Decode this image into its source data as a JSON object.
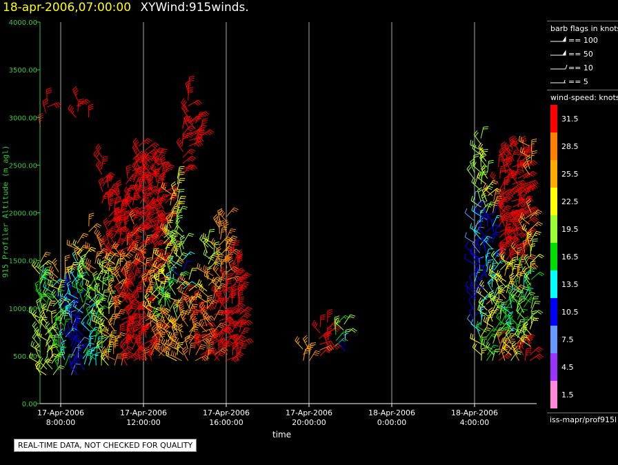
{
  "header": {
    "date": "18-apr-2006,07:00:00",
    "name": "XYWind:915winds."
  },
  "notice": "REAL-TIME DATA, NOT CHECKED FOR QUALITY",
  "legend": {
    "flags_title": "barb flags in knots",
    "flags": [
      {
        "label": "== 100",
        "knots": 100
      },
      {
        "label": "== 50",
        "knots": 50
      },
      {
        "label": "== 10",
        "knots": 10
      },
      {
        "label": "== 5",
        "knots": 5
      }
    ],
    "speed_title": "wind-speed: knots",
    "footer_id": "iss-mapr/prof915l"
  },
  "colors": {
    "axis": "#33cc33",
    "grid": "#aaaaaa",
    "text": "#ffffff",
    "title_date": "#ffff00"
  },
  "chart_data": {
    "type": "wind-barb time-height plot",
    "xlabel": "time",
    "ylabel": "915 Profiler Altitude (m agl)",
    "x_range": [
      "2006-04-17T07:00:00",
      "2006-04-18T07:00:00"
    ],
    "x_ticks": [
      {
        "date": "17-Apr-2006",
        "time": "8:00:00",
        "hour": 1
      },
      {
        "date": "17-Apr-2006",
        "time": "12:00:00",
        "hour": 5
      },
      {
        "date": "17-Apr-2006",
        "time": "16:00:00",
        "hour": 9
      },
      {
        "date": "17-Apr-2006",
        "time": "20:00:00",
        "hour": 13
      },
      {
        "date": "18-Apr-2006",
        "time": "0:00:00",
        "hour": 17
      },
      {
        "date": "18-Apr-2006",
        "time": "4:00:00",
        "hour": 21
      }
    ],
    "ylim": [
      0,
      4000
    ],
    "y_ticks": [
      "0.00",
      "500.00",
      "1000.00",
      "1500.00",
      "2000.00",
      "2500.00",
      "3000.00",
      "3500.00",
      "4000.00"
    ],
    "y_tick_values": [
      0,
      500,
      1000,
      1500,
      2000,
      2500,
      3000,
      3500,
      4000
    ],
    "colorbar": [
      {
        "label": "31.5",
        "color": "#ff0000"
      },
      {
        "label": "28.5",
        "color": "#ff8000"
      },
      {
        "label": "25.5",
        "color": "#ffaa00"
      },
      {
        "label": "22.5",
        "color": "#ffff00"
      },
      {
        "label": "19.5",
        "color": "#99ff33"
      },
      {
        "label": "16.5",
        "color": "#00dd00"
      },
      {
        "label": "13.5",
        "color": "#00ffff"
      },
      {
        "label": "10.5",
        "color": "#0000ff"
      },
      {
        "label": "7.5",
        "color": "#6699ff"
      },
      {
        "label": "4.5",
        "color": "#9933ff"
      },
      {
        "label": "1.5",
        "color": "#ff88dd"
      }
    ],
    "profiles": [
      {
        "t": 0.0,
        "bands": [
          [
            300,
            900,
            21
          ],
          [
            900,
            1300,
            18
          ],
          [
            1300,
            1500,
            23
          ],
          [
            2900,
            2900,
            33
          ]
        ]
      },
      {
        "t": 0.3,
        "bands": [
          [
            300,
            1000,
            22
          ],
          [
            1000,
            1400,
            17
          ],
          [
            3050,
            3200,
            33
          ]
        ]
      },
      {
        "t": 0.6,
        "bands": [
          [
            300,
            1100,
            20
          ],
          [
            1100,
            1350,
            14
          ]
        ]
      },
      {
        "t": 0.9,
        "bands": [
          [
            350,
            1000,
            17
          ],
          [
            1000,
            1200,
            20
          ],
          [
            1200,
            1400,
            25
          ]
        ]
      },
      {
        "t": 1.2,
        "bands": [
          [
            400,
            1000,
            15
          ],
          [
            1000,
            1300,
            11
          ],
          [
            1300,
            1450,
            26
          ]
        ]
      },
      {
        "t": 1.5,
        "bands": [
          [
            300,
            900,
            9
          ],
          [
            900,
            1300,
            12
          ],
          [
            1300,
            1400,
            23
          ]
        ]
      },
      {
        "t": 1.8,
        "bands": [
          [
            300,
            1100,
            10
          ],
          [
            1100,
            1500,
            14
          ],
          [
            1500,
            1700,
            27
          ],
          [
            3000,
            3200,
            33
          ]
        ]
      },
      {
        "t": 2.1,
        "bands": [
          [
            350,
            1000,
            12
          ],
          [
            1000,
            1300,
            16
          ],
          [
            1300,
            1600,
            21
          ]
        ]
      },
      {
        "t": 2.4,
        "bands": [
          [
            400,
            1100,
            14
          ],
          [
            1100,
            1400,
            18
          ],
          [
            1800,
            1900,
            25
          ],
          [
            3000,
            3000,
            32
          ]
        ]
      },
      {
        "t": 2.7,
        "bands": [
          [
            400,
            1000,
            16
          ],
          [
            1000,
            1350,
            22
          ],
          [
            1350,
            1600,
            28
          ]
        ]
      },
      {
        "t": 3.0,
        "bands": [
          [
            400,
            950,
            21
          ],
          [
            950,
            1400,
            19
          ],
          [
            1400,
            1700,
            29
          ],
          [
            2100,
            2600,
            33
          ]
        ]
      },
      {
        "t": 3.3,
        "bands": [
          [
            400,
            1000,
            24
          ],
          [
            1000,
            1500,
            20
          ],
          [
            1500,
            1900,
            31
          ],
          [
            1900,
            2300,
            33
          ]
        ]
      },
      {
        "t": 3.6,
        "bands": [
          [
            400,
            1100,
            28
          ],
          [
            1100,
            1500,
            24
          ],
          [
            1500,
            2100,
            32
          ]
        ]
      },
      {
        "t": 3.9,
        "bands": [
          [
            400,
            1200,
            31
          ],
          [
            1200,
            1600,
            27
          ],
          [
            1600,
            2200,
            33
          ]
        ]
      },
      {
        "t": 4.2,
        "bands": [
          [
            400,
            1300,
            32
          ],
          [
            1300,
            1700,
            29
          ],
          [
            1700,
            2400,
            33
          ]
        ]
      },
      {
        "t": 4.5,
        "bands": [
          [
            450,
            1400,
            32
          ],
          [
            1400,
            1900,
            30
          ],
          [
            1900,
            2600,
            33
          ]
        ]
      },
      {
        "t": 4.8,
        "bands": [
          [
            450,
            1200,
            32
          ],
          [
            1200,
            1800,
            31
          ],
          [
            1800,
            2700,
            33
          ]
        ]
      },
      {
        "t": 5.1,
        "bands": [
          [
            450,
            1100,
            31
          ],
          [
            1100,
            1700,
            27
          ],
          [
            1700,
            2700,
            33
          ]
        ]
      },
      {
        "t": 5.4,
        "bands": [
          [
            450,
            900,
            29
          ],
          [
            900,
            1500,
            24
          ],
          [
            1500,
            2600,
            33
          ]
        ]
      },
      {
        "t": 5.7,
        "bands": [
          [
            500,
            800,
            30
          ],
          [
            800,
            1300,
            22
          ],
          [
            1300,
            2500,
            32
          ],
          [
            2500,
            2600,
            33
          ]
        ]
      },
      {
        "t": 6.0,
        "bands": [
          [
            500,
            900,
            28
          ],
          [
            900,
            1200,
            17
          ],
          [
            1200,
            1800,
            22
          ],
          [
            1800,
            2500,
            33
          ]
        ]
      },
      {
        "t": 6.3,
        "bands": [
          [
            500,
            1000,
            26
          ],
          [
            1000,
            1300,
            15
          ],
          [
            1300,
            2200,
            24
          ]
        ]
      },
      {
        "t": 6.6,
        "bands": [
          [
            450,
            900,
            24
          ],
          [
            900,
            1300,
            21
          ],
          [
            1300,
            2000,
            19
          ],
          [
            2000,
            2400,
            22
          ]
        ]
      },
      {
        "t": 6.9,
        "bands": [
          [
            450,
            900,
            26
          ],
          [
            900,
            1200,
            30
          ],
          [
            1200,
            1500,
            13
          ],
          [
            1500,
            1800,
            20
          ],
          [
            2400,
            2900,
            33
          ]
        ]
      },
      {
        "t": 7.2,
        "bands": [
          [
            450,
            1000,
            28
          ],
          [
            1000,
            1300,
            23
          ],
          [
            2700,
            3300,
            33
          ]
        ]
      },
      {
        "t": 7.5,
        "bands": [
          [
            450,
            1100,
            30
          ],
          [
            2700,
            3000,
            33
          ]
        ]
      },
      {
        "t": 7.8,
        "bands": [
          [
            450,
            1100,
            31
          ],
          [
            2800,
            2900,
            33
          ]
        ]
      },
      {
        "t": 8.1,
        "bands": [
          [
            450,
            1000,
            29
          ],
          [
            1000,
            1400,
            24
          ],
          [
            1400,
            1700,
            22
          ]
        ]
      },
      {
        "t": 8.4,
        "bands": [
          [
            450,
            1100,
            31
          ],
          [
            1100,
            1500,
            26
          ],
          [
            1500,
            1700,
            20
          ]
        ]
      },
      {
        "t": 8.7,
        "bands": [
          [
            450,
            1200,
            32
          ],
          [
            1200,
            1600,
            27
          ],
          [
            1600,
            1900,
            24
          ]
        ]
      },
      {
        "t": 9.0,
        "bands": [
          [
            450,
            1300,
            32
          ],
          [
            1300,
            1600,
            29
          ],
          [
            1600,
            2000,
            26
          ]
        ]
      },
      {
        "t": 9.3,
        "bands": [
          [
            450,
            1400,
            33
          ],
          [
            1400,
            1600,
            30
          ]
        ]
      },
      {
        "t": 9.6,
        "bands": [
          [
            450,
            1500,
            33
          ]
        ]
      },
      {
        "t": 12.7,
        "bands": [
          [
            450,
            600,
            26
          ]
        ]
      },
      {
        "t": 13.0,
        "bands": [
          [
            450,
            600,
            27
          ]
        ]
      },
      {
        "t": 13.5,
        "bands": [
          [
            500,
            850,
            31
          ]
        ]
      },
      {
        "t": 13.9,
        "bands": [
          [
            550,
            850,
            33
          ]
        ]
      },
      {
        "t": 14.3,
        "bands": [
          [
            600,
            850,
            18
          ]
        ]
      },
      {
        "t": 14.7,
        "bands": [
          [
            650,
            850,
            20
          ],
          [
            550,
            650,
            10
          ]
        ]
      },
      {
        "t": 21.0,
        "bands": [
          [
            800,
            1100,
            10
          ],
          [
            1100,
            1500,
            11
          ],
          [
            1500,
            2100,
            9
          ],
          [
            2300,
            2500,
            21
          ]
        ]
      },
      {
        "t": 21.3,
        "bands": [
          [
            450,
            700,
            22
          ],
          [
            700,
            1100,
            14
          ],
          [
            1100,
            1600,
            10
          ],
          [
            1600,
            2000,
            13
          ],
          [
            2000,
            2800,
            19
          ]
        ]
      },
      {
        "t": 21.6,
        "bands": [
          [
            450,
            800,
            17
          ],
          [
            800,
            1200,
            23
          ],
          [
            1200,
            1500,
            13
          ],
          [
            1500,
            2000,
            11
          ],
          [
            2000,
            2600,
            22
          ]
        ]
      },
      {
        "t": 21.9,
        "bands": [
          [
            450,
            800,
            19
          ],
          [
            800,
            1100,
            22
          ],
          [
            1100,
            1500,
            13
          ],
          [
            1500,
            2000,
            11
          ],
          [
            2000,
            2200,
            26
          ]
        ]
      },
      {
        "t": 22.2,
        "bands": [
          [
            450,
            700,
            30
          ],
          [
            700,
            1100,
            19
          ],
          [
            1100,
            1500,
            21
          ],
          [
            1500,
            2000,
            33
          ],
          [
            2000,
            2600,
            33
          ]
        ]
      },
      {
        "t": 22.5,
        "bands": [
          [
            450,
            700,
            27
          ],
          [
            700,
            1100,
            16
          ],
          [
            1100,
            1500,
            24
          ],
          [
            1500,
            2000,
            33
          ],
          [
            2000,
            2700,
            33
          ]
        ]
      },
      {
        "t": 22.8,
        "bands": [
          [
            450,
            700,
            21
          ],
          [
            700,
            1100,
            14
          ],
          [
            1100,
            1500,
            23
          ],
          [
            1500,
            2000,
            33
          ],
          [
            2000,
            2700,
            33
          ]
        ]
      },
      {
        "t": 23.1,
        "bands": [
          [
            450,
            700,
            24
          ],
          [
            700,
            1200,
            18
          ],
          [
            1200,
            1600,
            25
          ],
          [
            1600,
            2000,
            33
          ],
          [
            2000,
            2700,
            33
          ]
        ]
      },
      {
        "t": 23.4,
        "bands": [
          [
            450,
            650,
            33
          ],
          [
            650,
            1100,
            19
          ],
          [
            1100,
            1400,
            14
          ],
          [
            1400,
            2000,
            29
          ],
          [
            2000,
            2700,
            33
          ]
        ]
      },
      {
        "t": 23.7,
        "bands": [
          [
            450,
            600,
            33
          ],
          [
            600,
            1000,
            20
          ],
          [
            1000,
            1300,
            17
          ],
          [
            1300,
            1700,
            22
          ],
          [
            1700,
            2000,
            24
          ],
          [
            2400,
            2700,
            26
          ]
        ]
      }
    ]
  }
}
